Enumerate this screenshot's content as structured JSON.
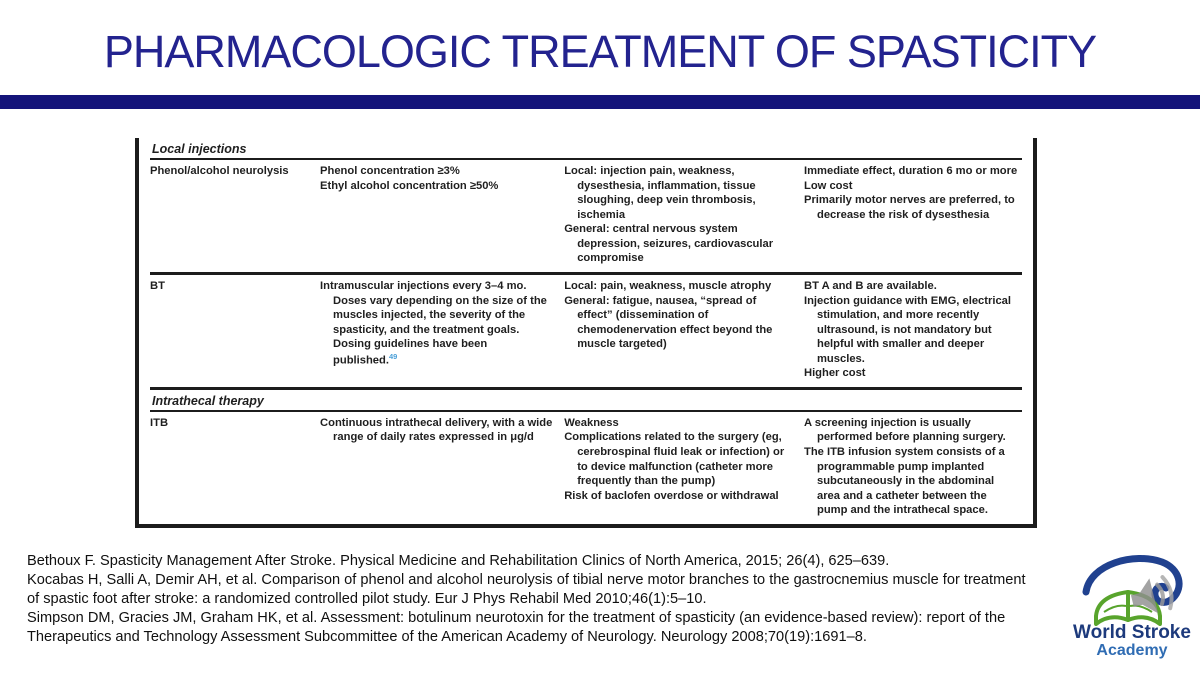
{
  "slide": {
    "title": "PHARMACOLOGIC TREATMENT OF SPASTICITY"
  },
  "colors": {
    "title_text": "#23238f",
    "title_bar": "#14147a",
    "table_border": "#1c1c1c",
    "table_text": "#1f1f1f",
    "citation_superscript": "#4a9fd8",
    "logo_swoosh_blue": "#20418f",
    "logo_book_green": "#58a42c",
    "logo_text_dark": "#1d3a7c",
    "logo_text_light": "#2f6cb3"
  },
  "icons": {
    "audio": "speaker-icon",
    "logo_book": "open-book-icon",
    "logo_swoosh": "swoosh-arc-icon"
  },
  "table": {
    "sections": [
      {
        "header": "Local injections",
        "rows": [
          {
            "name": "Phenol/alcohol neurolysis",
            "dosing": [
              {
                "t": "Phenol concentration ≥3%"
              },
              {
                "t": "Ethyl alcohol concentration ≥50%"
              }
            ],
            "adverse_effects": [
              {
                "t": "Local: injection pain, weakness, dysesthesia, inflammation, tissue sloughing, deep vein thrombosis, ischemia"
              },
              {
                "t": "General: central nervous system depression, seizures, cardiovascular compromise"
              }
            ],
            "comments": [
              {
                "t": "Immediate effect, duration 6 mo or more"
              },
              {
                "t": "Low cost"
              },
              {
                "t": "Primarily motor nerves are preferred, to decrease the risk of dysesthesia"
              }
            ]
          },
          {
            "name": "BT",
            "dosing": [
              {
                "t": "Intramuscular injections every 3–4 mo. Doses vary depending on the size of the muscles injected, the severity of the spasticity, and the treatment goals. Dosing guidelines have been published.",
                "sup": "49"
              }
            ],
            "adverse_effects": [
              {
                "t": "Local: pain, weakness, muscle atrophy"
              },
              {
                "t": "General: fatigue, nausea, “spread of effect” (dissemination of chemodenervation effect beyond the muscle targeted)"
              }
            ],
            "comments": [
              {
                "t": "BT A and B are available."
              },
              {
                "t": "Injection guidance with EMG, electrical stimulation, and more recently ultrasound, is not mandatory but helpful with smaller and deeper muscles."
              },
              {
                "t": "Higher cost"
              }
            ]
          }
        ]
      },
      {
        "header": "Intrathecal therapy",
        "rows": [
          {
            "name": "ITB",
            "dosing": [
              {
                "t": "Continuous intrathecal delivery, with a wide range of daily rates expressed in μg/d"
              }
            ],
            "adverse_effects": [
              {
                "t": "Weakness"
              },
              {
                "t": "Complications related to the surgery (eg, cerebrospinal fluid leak or infection) or to device malfunction (catheter more frequently than the pump)"
              },
              {
                "t": "Risk of baclofen overdose or withdrawal"
              }
            ],
            "comments": [
              {
                "t": "A screening injection is usually performed before planning surgery."
              },
              {
                "t": "The ITB infusion system consists of a programmable pump implanted subcutaneously in the abdominal area and a catheter between the pump and the intrathecal space."
              }
            ]
          }
        ]
      }
    ]
  },
  "references": [
    "Bethoux F. Spasticity Management After Stroke. Physical Medicine and Rehabilitation Clinics of North America, 2015; 26(4), 625–639.",
    "Kocabas H, Salli A, Demir AH, et al. Comparison of phenol and alcohol neurolysis of tibial nerve motor branches to the gastrocnemius muscle for treatment of spastic foot after stroke: a randomized controlled pilot study. Eur J Phys Rehabil Med 2010;46(1):5–10.",
    "Simpson DM, Gracies JM, Graham HK, et al. Assessment: botulinum neurotoxin for the treatment of spasticity (an evidence-based review): report of the Therapeutics and Technology Assessment Subcommittee of the American Academy of Neurology. Neurology 2008;70(19):1691–8."
  ],
  "logo": {
    "line1": "World Stroke",
    "line2": "Academy"
  }
}
